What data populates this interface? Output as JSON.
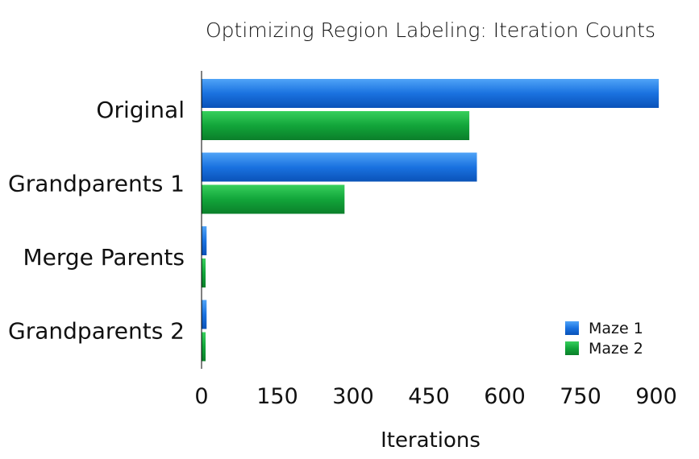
{
  "chart_data": {
    "type": "bar",
    "orientation": "horizontal",
    "title": "Optimizing Region Labeling: Iteration Counts",
    "xlabel": "Iterations",
    "ylabel": "",
    "xlim": [
      0,
      900
    ],
    "xticks": [
      "0",
      "150",
      "300",
      "450",
      "600",
      "750",
      "900"
    ],
    "categories": [
      "Original",
      "Grandparents 1",
      "Merge Parents",
      "Grandparents 2"
    ],
    "series": [
      {
        "name": "Maze 1",
        "color": "#1a72e0",
        "values": [
          905,
          545,
          10,
          10
        ]
      },
      {
        "name": "Maze 2",
        "color": "#12a53a",
        "values": [
          530,
          283,
          8,
          8
        ]
      }
    ],
    "grid": false,
    "legend": "bottom-right"
  }
}
